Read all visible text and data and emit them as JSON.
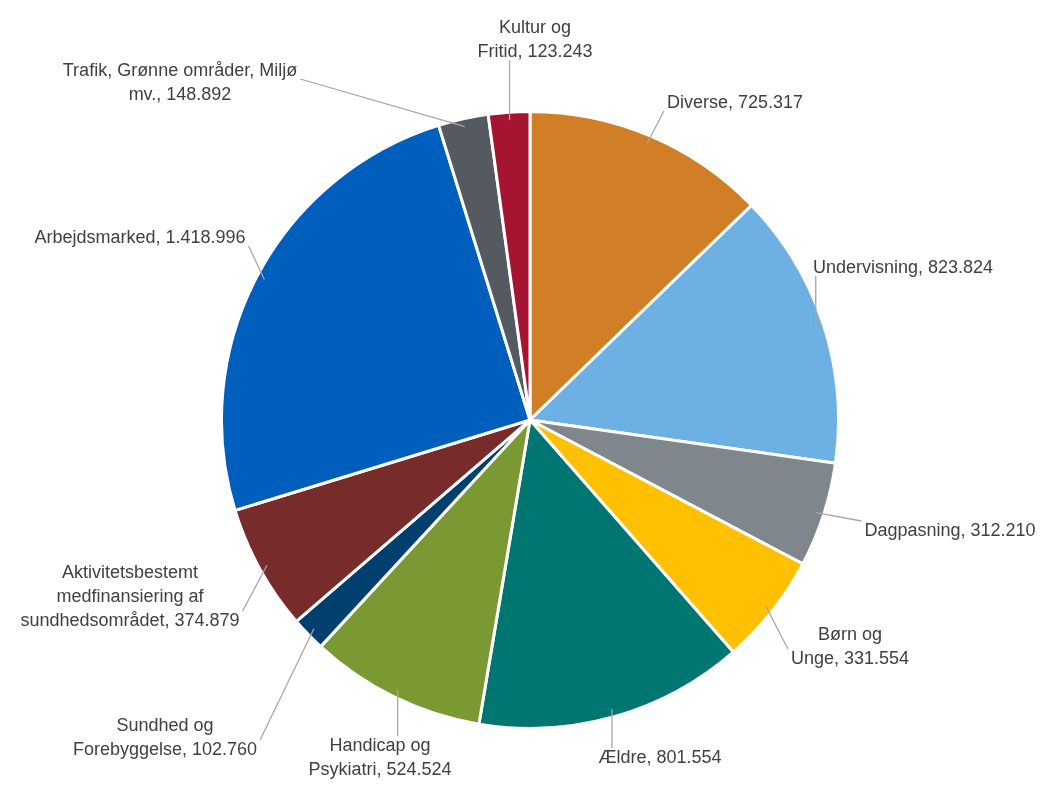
{
  "chart_data": {
    "type": "pie",
    "categories": [
      "Diverse",
      "Undervisning",
      "Dagpasning",
      "Børn og Unge",
      "Ældre",
      "Handicap og Psykiatri",
      "Sundhed og Forebyggelse",
      "Aktivitetsbestemt medfinansiering af sundhedsområdet",
      "Arbejdsmarked",
      "Trafik, Grønne områder, Miljø mv.",
      "Kultur og Fritid"
    ],
    "values": [
      725317,
      823824,
      312210,
      331554,
      801554,
      524524,
      102760,
      374879,
      1418996,
      148892,
      123243
    ],
    "value_labels": [
      "725.317",
      "823.824",
      "312.210",
      "331.554",
      "801.554",
      "524.524",
      "102.760",
      "374.879",
      "1.418.996",
      "148.892",
      "123.243"
    ],
    "colors": [
      "#d07f27",
      "#6cb0e4",
      "#7f868c",
      "#ffc000",
      "#007672",
      "#7a9932",
      "#003f6e",
      "#782b2b",
      "#005ebc",
      "#555a60",
      "#a51431"
    ],
    "legend": false
  }
}
